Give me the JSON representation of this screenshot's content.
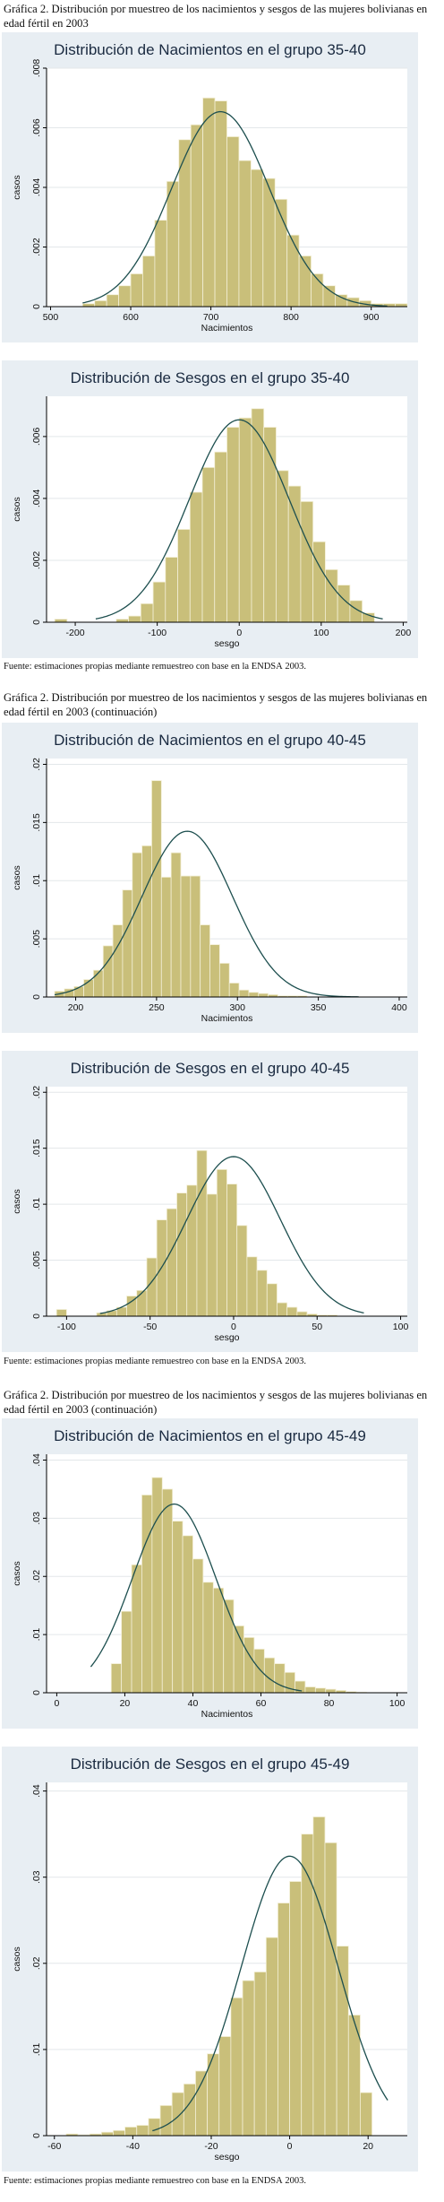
{
  "section1": {
    "caption": "Gráfica 2. Distribución por muestreo de los nacimientos y sesgos de las mujeres bolivianas en edad fértil en 2003",
    "source_prefix": "Fuente: estimaciones propias mediante remuestreo con base en la ",
    "source_abbr": "ENDSA",
    "source_suffix": " 2003."
  },
  "section2": {
    "caption": "Gráfica 2. Distribución por muestreo de los nacimientos y sesgos de las mujeres bolivianas en edad fértil en 2003 (continuación)",
    "source_prefix": "Fuente: estimaciones propias mediante remuestreo con base en la ",
    "source_abbr": "ENDSA",
    "source_suffix": " 2003."
  },
  "section3": {
    "caption": "Gráfica 2. Distribución por muestreo de los nacimientos y sesgos de las mujeres bolivianas en edad fértil en 2003 (continuación)",
    "source_prefix": "Fuente: estimaciones propias mediante remuestreo con base en la ",
    "source_abbr": "ENDSA",
    "source_suffix": " 2003."
  },
  "colors": {
    "bar_fill": "#c9bf7a",
    "bar_stroke": "#f3efd6",
    "curve": "#1d4f4f",
    "panel_bg": "#e8eef3",
    "plot_bg": "#ffffff",
    "grid": "#e3e7ea"
  },
  "chart_data": [
    {
      "type": "bar",
      "title": "Distribución de Nacimientos en el grupo 35-40",
      "xlabel": "Nacimientos",
      "ylabel": "casos",
      "xlim": [
        495,
        945
      ],
      "ylim": [
        0,
        0.008
      ],
      "xticks": [
        500,
        600,
        700,
        800,
        900
      ],
      "yticks": [
        0,
        0.002,
        0.004,
        0.006,
        0.008
      ],
      "ytick_labels": [
        "0",
        ".002",
        ".004",
        ".006",
        ".008"
      ],
      "grid": true,
      "bin_start": 540,
      "bin_width": 15,
      "values": [
        0.0001,
        0.0002,
        0.0004,
        0.0007,
        0.0011,
        0.0017,
        0.0029,
        0.0042,
        0.0056,
        0.0061,
        0.007,
        0.0069,
        0.0057,
        0.0049,
        0.0046,
        0.0043,
        0.0036,
        0.0024,
        0.0017,
        0.0011,
        0.0007,
        0.0004,
        0.0003,
        0.0002,
        0.0001,
        0.0001,
        0.0001
      ],
      "normal_curve": {
        "mean": 712,
        "sd": 61,
        "start": 540,
        "end": 920
      }
    },
    {
      "type": "bar",
      "title": "Distribución de Sesgos en el grupo 35-40",
      "xlabel": "sesgo",
      "ylabel": "casos",
      "xlim": [
        -235,
        205
      ],
      "ylim": [
        0,
        0.0073
      ],
      "xticks": [
        -200,
        -100,
        0,
        100,
        200
      ],
      "yticks": [
        0,
        0.002,
        0.004,
        0.006
      ],
      "ytick_labels": [
        "0",
        ".002",
        ".004",
        ".006"
      ],
      "grid": true,
      "bin_start": -225,
      "bin_width": 15,
      "values": [
        0.0001,
        0,
        0,
        0,
        0,
        0.0001,
        0.0002,
        0.0006,
        0.0013,
        0.0021,
        0.003,
        0.0042,
        0.005,
        0.0055,
        0.0063,
        0.0066,
        0.0069,
        0.0063,
        0.0049,
        0.0044,
        0.0039,
        0.0026,
        0.0017,
        0.0012,
        0.0007,
        0.0003
      ],
      "normal_curve": {
        "mean": 0,
        "sd": 61,
        "start": -175,
        "end": 175
      }
    },
    {
      "type": "bar",
      "title": "Distribución de Nacimientos en el grupo 40-45",
      "xlabel": "Nacimientos",
      "ylabel": "casos",
      "xlim": [
        182,
        405
      ],
      "ylim": [
        0,
        0.0205
      ],
      "xticks": [
        200,
        250,
        300,
        350,
        400
      ],
      "yticks": [
        0,
        0.005,
        0.01,
        0.015,
        0.02
      ],
      "ytick_labels": [
        "0",
        ".005",
        ".01",
        ".015",
        ".02"
      ],
      "grid": true,
      "bin_start": 187,
      "bin_width": 6,
      "values": [
        0.0005,
        0.0007,
        0.0009,
        0.0015,
        0.0023,
        0.0044,
        0.0062,
        0.0092,
        0.0124,
        0.013,
        0.0186,
        0.0103,
        0.0124,
        0.0104,
        0.0104,
        0.0062,
        0.0045,
        0.0029,
        0.0012,
        0.0006,
        0.0004,
        0.0003,
        0.0002,
        0.0001,
        0.0001,
        0.0001
      ],
      "normal_curve": {
        "mean": 269,
        "sd": 28,
        "start": 187,
        "end": 375
      }
    },
    {
      "type": "bar",
      "title": "Distribución de Sesgos en el grupo 40-45",
      "xlabel": "sesgo",
      "ylabel": "casos",
      "xlim": [
        -112,
        104
      ],
      "ylim": [
        0,
        0.0205
      ],
      "xticks": [
        -100,
        -50,
        0,
        50,
        100
      ],
      "yticks": [
        0,
        0.005,
        0.01,
        0.015,
        0.02
      ],
      "ytick_labels": [
        "0",
        ".005",
        ".01",
        ".015",
        ".02"
      ],
      "grid": true,
      "bin_start": -106,
      "bin_width": 6,
      "values": [
        0.0006,
        0,
        0,
        0,
        0.0003,
        0.0005,
        0.0008,
        0.0018,
        0.0023,
        0.0052,
        0.0086,
        0.0096,
        0.011,
        0.0117,
        0.0148,
        0.0109,
        0.0131,
        0.0118,
        0.0081,
        0.0053,
        0.0041,
        0.0029,
        0.0012,
        0.0008,
        0.0004,
        0.0002,
        0.0001,
        0.0001
      ],
      "normal_curve": {
        "mean": 0,
        "sd": 28,
        "start": -80,
        "end": 78
      }
    },
    {
      "type": "bar",
      "title": "Distribución de Nacimientos en el grupo 45-49",
      "xlabel": "Nacimientos",
      "ylabel": "casos",
      "xlim": [
        -3,
        103
      ],
      "ylim": [
        0,
        0.041
      ],
      "xticks": [
        0,
        20,
        40,
        60,
        80,
        100
      ],
      "yticks": [
        0,
        0.01,
        0.02,
        0.03,
        0.04
      ],
      "ytick_labels": [
        "0",
        ".01",
        ".02",
        ".03",
        ".04"
      ],
      "grid": true,
      "bin_start": 16,
      "bin_width": 3,
      "values": [
        0.005,
        0.014,
        0.022,
        0.034,
        0.037,
        0.035,
        0.0295,
        0.027,
        0.023,
        0.019,
        0.018,
        0.016,
        0.0115,
        0.0095,
        0.0075,
        0.006,
        0.005,
        0.0035,
        0.002,
        0.001,
        0.0008,
        0.0006,
        0.0004,
        0.0002,
        0.0001
      ],
      "normal_curve": {
        "mean": 34.5,
        "sd": 12.3,
        "start": 10,
        "end": 72
      }
    },
    {
      "type": "bar",
      "title": "Distribución de Sesgos en el grupo 45-49",
      "xlabel": "sesgo",
      "ylabel": "casos",
      "xlim": [
        -62,
        30
      ],
      "ylim": [
        0,
        0.041
      ],
      "xticks": [
        -60,
        -40,
        -20,
        0,
        20
      ],
      "yticks": [
        0,
        0.01,
        0.02,
        0.03,
        0.04
      ],
      "ytick_labels": [
        "0",
        ".01",
        ".02",
        ".03",
        ".04"
      ],
      "grid": true,
      "bin_start": -57,
      "bin_width": 3,
      "values": [
        0.0002,
        0.0001,
        0.0002,
        0.0004,
        0.0006,
        0.001,
        0.0012,
        0.002,
        0.0035,
        0.005,
        0.006,
        0.0075,
        0.0095,
        0.0115,
        0.016,
        0.018,
        0.019,
        0.023,
        0.027,
        0.0295,
        0.035,
        0.037,
        0.034,
        0.022,
        0.014,
        0.005
      ],
      "normal_curve": {
        "mean": 0,
        "sd": 12.3,
        "start": -35,
        "end": 25
      }
    }
  ]
}
